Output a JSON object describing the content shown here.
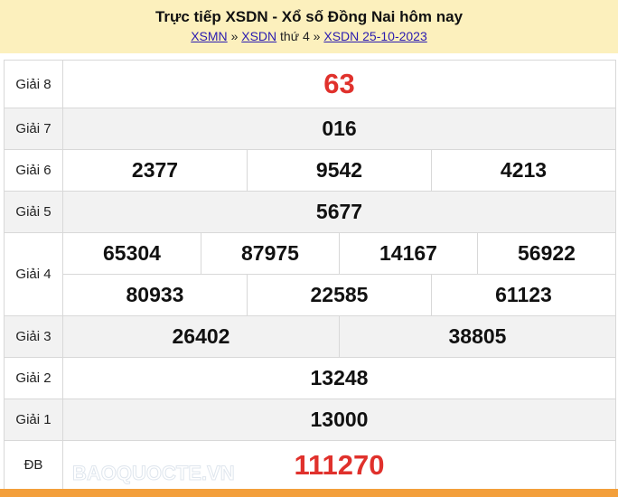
{
  "header": {
    "title": "Trực tiếp XSDN - Xổ số Đồng Nai hôm nay",
    "crumb1": "XSMN",
    "sep1": "»",
    "crumb2": "XSDN",
    "day": "thứ 4",
    "sep2": "»",
    "crumb3": "XSDN 25-10-2023"
  },
  "prizes": {
    "g8": {
      "label": "Giải 8",
      "n": [
        "63"
      ]
    },
    "g7": {
      "label": "Giải 7",
      "n": [
        "016"
      ]
    },
    "g6": {
      "label": "Giải 6",
      "n": [
        "2377",
        "9542",
        "4213"
      ]
    },
    "g5": {
      "label": "Giải 5",
      "n": [
        "5677"
      ]
    },
    "g4": {
      "label": "Giải 4",
      "n": [
        "65304",
        "87975",
        "14167",
        "56922",
        "80933",
        "22585",
        "61123"
      ]
    },
    "g3": {
      "label": "Giải 3",
      "n": [
        "26402",
        "38805"
      ]
    },
    "g2": {
      "label": "Giải 2",
      "n": [
        "13248"
      ]
    },
    "g1": {
      "label": "Giải 1",
      "n": [
        "13000"
      ]
    },
    "db": {
      "label": "ĐB",
      "n": [
        "111270"
      ]
    }
  },
  "watermark": "BAOQUOCTE.VN",
  "colors": {
    "header_bg": "#fcf0bd",
    "highlight": "#e0312c",
    "footer_bar": "#f39f3b"
  }
}
